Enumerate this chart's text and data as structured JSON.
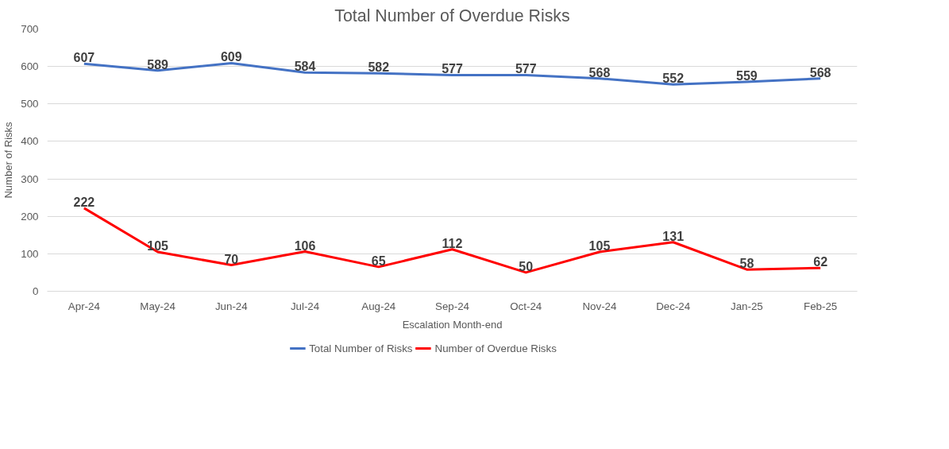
{
  "chart_data": {
    "type": "line",
    "title": "Total Number of Overdue Risks",
    "xlabel": "Escalation Month-end",
    "ylabel": "Number of Risks",
    "categories": [
      "Apr-24",
      "May-24",
      "Jun-24",
      "Jul-24",
      "Aug-24",
      "Sep-24",
      "Oct-24",
      "Nov-24",
      "Dec-24",
      "Jan-25",
      "Feb-25"
    ],
    "series": [
      {
        "name": "Total Number of Risks",
        "color": "#4472c4",
        "values": [
          607,
          589,
          609,
          584,
          582,
          577,
          577,
          568,
          552,
          559,
          568
        ]
      },
      {
        "name": "Number of Overdue Risks",
        "color": "#ff0000",
        "values": [
          222,
          105,
          70,
          106,
          65,
          112,
          50,
          105,
          131,
          58,
          62
        ]
      }
    ],
    "ylim": [
      0,
      700
    ],
    "yticks": [
      0,
      100,
      200,
      300,
      400,
      500,
      600,
      700
    ],
    "grid": "y",
    "legend": "bottom",
    "data_labels": true,
    "marker": "none"
  }
}
